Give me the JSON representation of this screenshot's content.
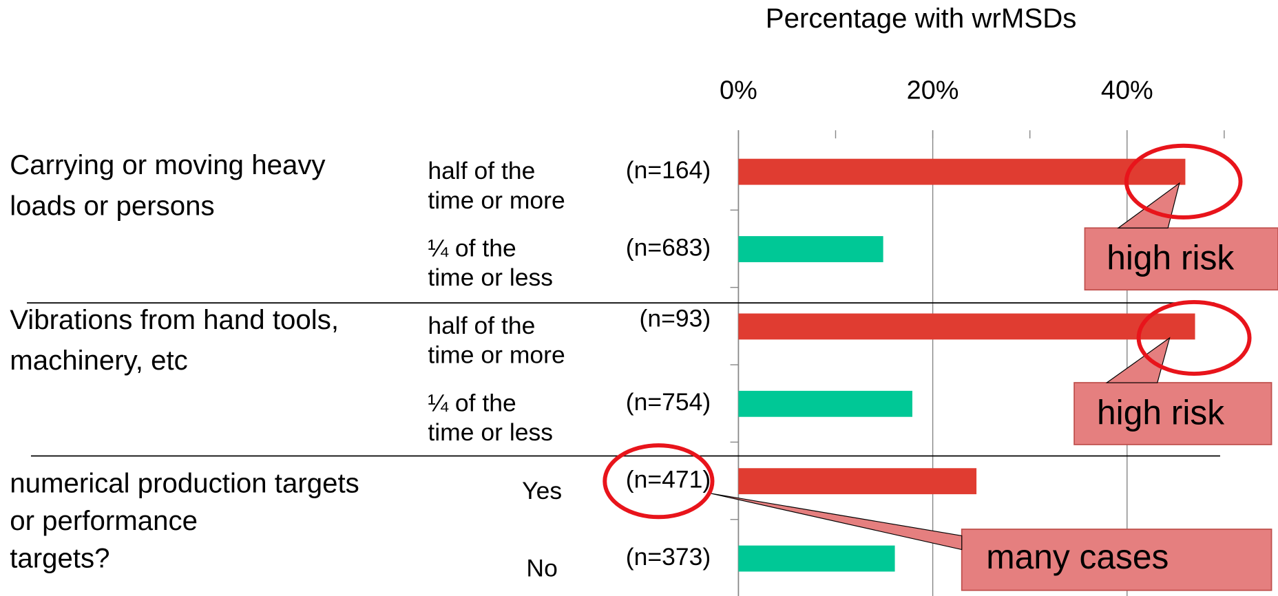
{
  "chart_data": {
    "type": "bar",
    "title": "Percentage with wrMSDs",
    "xlim": [
      0,
      50
    ],
    "xticks": [
      {
        "value": 0,
        "label": "0%"
      },
      {
        "value": 20,
        "label": "20%"
      },
      {
        "value": 40,
        "label": "40%"
      }
    ],
    "minor_xticks": [
      10,
      30,
      50
    ],
    "grid": true,
    "groups": [
      {
        "label": [
          "Carrying or moving heavy",
          "loads or persons"
        ],
        "rows": [
          {
            "label": [
              "half of the",
              "time or more"
            ],
            "n": "(n=164)",
            "value": 46,
            "color": "#e03c31"
          },
          {
            "label": [
              "¼ of the",
              "time or less"
            ],
            "n": "(n=683)",
            "value": 14.9,
            "color": "#00c896"
          }
        ]
      },
      {
        "label": [
          "Vibrations from hand tools,",
          "machinery, etc"
        ],
        "rows": [
          {
            "label": [
              "half of the",
              "time or more"
            ],
            "n": "(n=93)",
            "value": 47,
            "color": "#e03c31"
          },
          {
            "label": [
              "¼ of the",
              "time or less"
            ],
            "n": "(n=754)",
            "value": 17.9,
            "color": "#00c896"
          }
        ]
      },
      {
        "label": [
          "numerical production targets",
          "or performance",
          "targets?"
        ],
        "rows": [
          {
            "label": [
              "Yes"
            ],
            "n": "(n=471)",
            "value": 24.5,
            "color": "#e03c31"
          },
          {
            "label": [
              "No"
            ],
            "n": "(n=373)",
            "value": 16.1,
            "color": "#00c896"
          }
        ]
      }
    ],
    "annotations": [
      "high risk",
      "high risk",
      "many cases"
    ]
  }
}
